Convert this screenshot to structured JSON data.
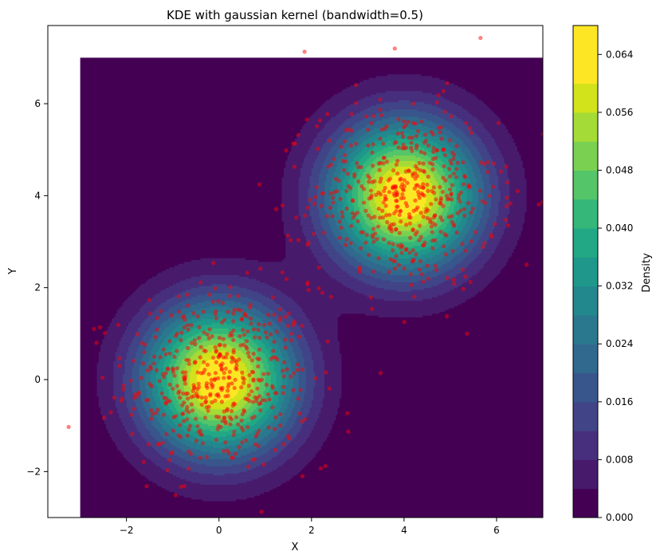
{
  "chart_data": {
    "type": "contourf + scatter",
    "title": "KDE with gaussian kernel (bandwidth=0.5)",
    "xlabel": "X",
    "ylabel": "Y",
    "xlim": [
      -3.7,
      7.0
    ],
    "ylim": [
      -3.0,
      7.7
    ],
    "density_grid_extent": {
      "x": [
        -3.0,
        7.0
      ],
      "y": [
        -3.0,
        7.0
      ]
    },
    "x_ticks": [
      -2,
      0,
      2,
      4,
      6
    ],
    "x_tick_labels": [
      "−2",
      "0",
      "2",
      "4",
      "6"
    ],
    "y_ticks": [
      -2,
      0,
      2,
      4,
      6
    ],
    "y_tick_labels": [
      "−2",
      "0",
      "2",
      "4",
      "6"
    ],
    "grid": false,
    "clusters": [
      {
        "center": [
          0.0,
          0.0
        ],
        "std": 1.0,
        "n": 500
      },
      {
        "center": [
          4.0,
          4.0
        ],
        "std": 1.0,
        "n": 500
      }
    ],
    "peak_density": 0.066,
    "scatter_color": "#ff0000",
    "scatter_alpha": 0.5,
    "outlier_points": [
      [
        -3.25,
        -1.03
      ],
      [
        1.85,
        7.13
      ],
      [
        3.8,
        7.2
      ],
      [
        6.65,
        2.5
      ],
      [
        2.3,
        -1.88
      ],
      [
        2.2,
        -1.93
      ],
      [
        -2.7,
        1.1
      ],
      [
        -2.65,
        0.8
      ]
    ],
    "colorbar": {
      "label": "Density",
      "range": [
        0.0,
        0.068
      ],
      "ticks": [
        0.0,
        0.008,
        0.016,
        0.024,
        0.032,
        0.04,
        0.048,
        0.056,
        0.064
      ],
      "tick_labels": [
        "0.000",
        "0.008",
        "0.016",
        "0.024",
        "0.032",
        "0.040",
        "0.048",
        "0.056",
        "0.064"
      ],
      "levels": 17,
      "colormap": "viridis"
    }
  },
  "colors": {
    "viridis": [
      "#440154",
      "#481a6c",
      "#472f7d",
      "#414487",
      "#39568c",
      "#31688e",
      "#2a788e",
      "#23888e",
      "#1f988b",
      "#22a884",
      "#35b779",
      "#54c568",
      "#7ad151",
      "#a5db36",
      "#d2e21b",
      "#fde725",
      "#fde725"
    ]
  }
}
